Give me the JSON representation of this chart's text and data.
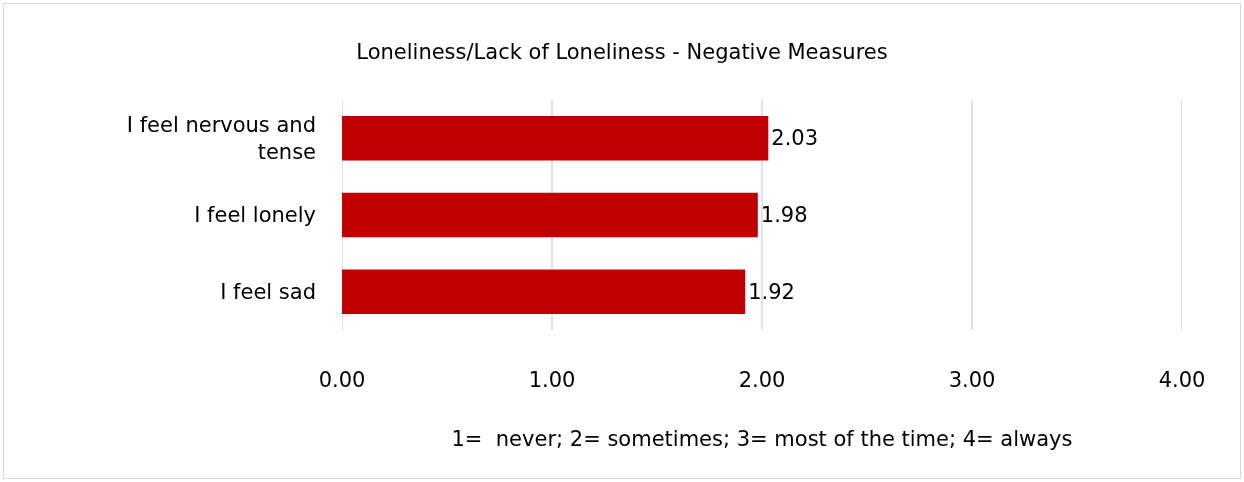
{
  "chart_data": {
    "type": "bar",
    "orientation": "horizontal",
    "title": "Loneliness/Lack of Loneliness - Negative Measures",
    "xlabel": "1=  never; 2= sometimes; 3= most of the time; 4= always",
    "categories": [
      "I feel nervous and tense",
      "I feel lonely",
      "I feel sad"
    ],
    "values": [
      2.03,
      1.98,
      1.92
    ],
    "color": "#c00000",
    "data_labels": true,
    "xlim": [
      0,
      4
    ],
    "xticks": [
      {
        "value": 0,
        "label": "0.00"
      },
      {
        "value": 1,
        "label": "1.00"
      },
      {
        "value": 2,
        "label": "2.00"
      },
      {
        "value": 3,
        "label": "3.00"
      },
      {
        "value": 4,
        "label": "4.00"
      }
    ],
    "grid": "x"
  }
}
